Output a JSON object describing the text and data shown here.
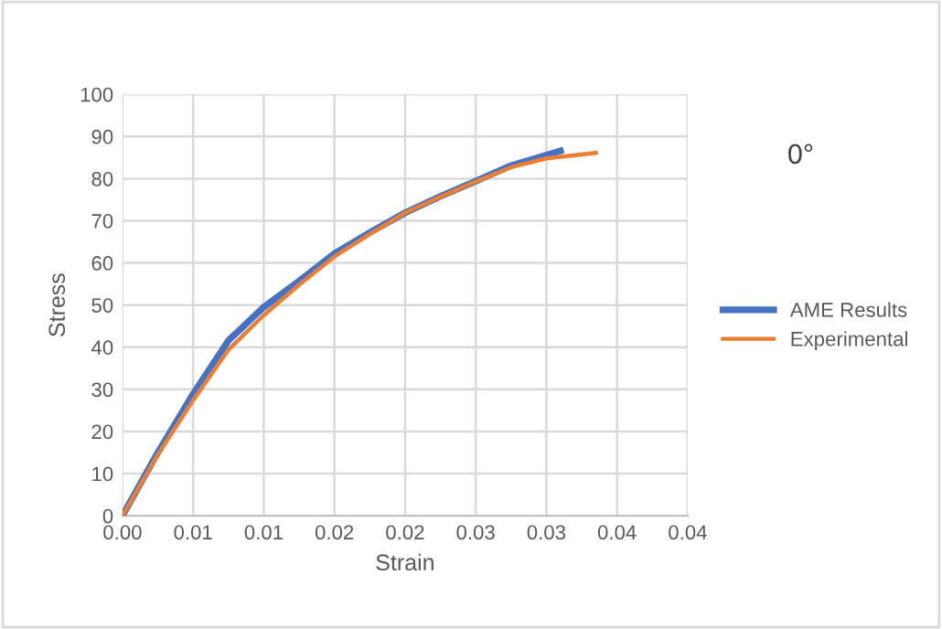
{
  "chart_data": {
    "type": "line",
    "xlabel": "Strain",
    "ylabel": "Stress",
    "annotations": [
      "0°"
    ],
    "xlim": [
      0,
      0.04
    ],
    "ylim": [
      0,
      100
    ],
    "xticks": [
      {
        "value": 0,
        "label": "0.00"
      },
      {
        "value": 0.005,
        "label": "0.01"
      },
      {
        "value": 0.01,
        "label": "0.01"
      },
      {
        "value": 0.015,
        "label": "0.02"
      },
      {
        "value": 0.02,
        "label": "0.02"
      },
      {
        "value": 0.025,
        "label": "0.03"
      },
      {
        "value": 0.03,
        "label": "0.03"
      },
      {
        "value": 0.035,
        "label": "0.04"
      },
      {
        "value": 0.04,
        "label": "0.04"
      }
    ],
    "yticks": [
      0,
      10,
      20,
      30,
      40,
      50,
      60,
      70,
      80,
      90,
      100
    ],
    "grid": true,
    "legend": "right",
    "marker": "none",
    "line_style": "solid",
    "series": [
      {
        "name": "AME Results",
        "color": "#4472c4",
        "x": [
          0,
          0.0025,
          0.005,
          0.0075,
          0.01,
          0.0125,
          0.015,
          0.0175,
          0.02,
          0.0225,
          0.025,
          0.0275,
          0.031
        ],
        "values": [
          0,
          15,
          28.9,
          41.6,
          49.5,
          55.7,
          62.2,
          67.2,
          71.9,
          75.8,
          79.4,
          83.1,
          86.6
        ]
      },
      {
        "name": "Experimental",
        "color": "#ed7d31",
        "x": [
          0,
          0.0025,
          0.005,
          0.0075,
          0.01,
          0.0125,
          0.015,
          0.0175,
          0.02,
          0.0225,
          0.025,
          0.0275,
          0.03,
          0.0335
        ],
        "values": [
          0,
          14.5,
          27.4,
          39.4,
          47.6,
          54.8,
          61.5,
          66.8,
          71.9,
          75.7,
          79.3,
          82.7,
          84.8,
          86.1
        ]
      }
    ]
  }
}
